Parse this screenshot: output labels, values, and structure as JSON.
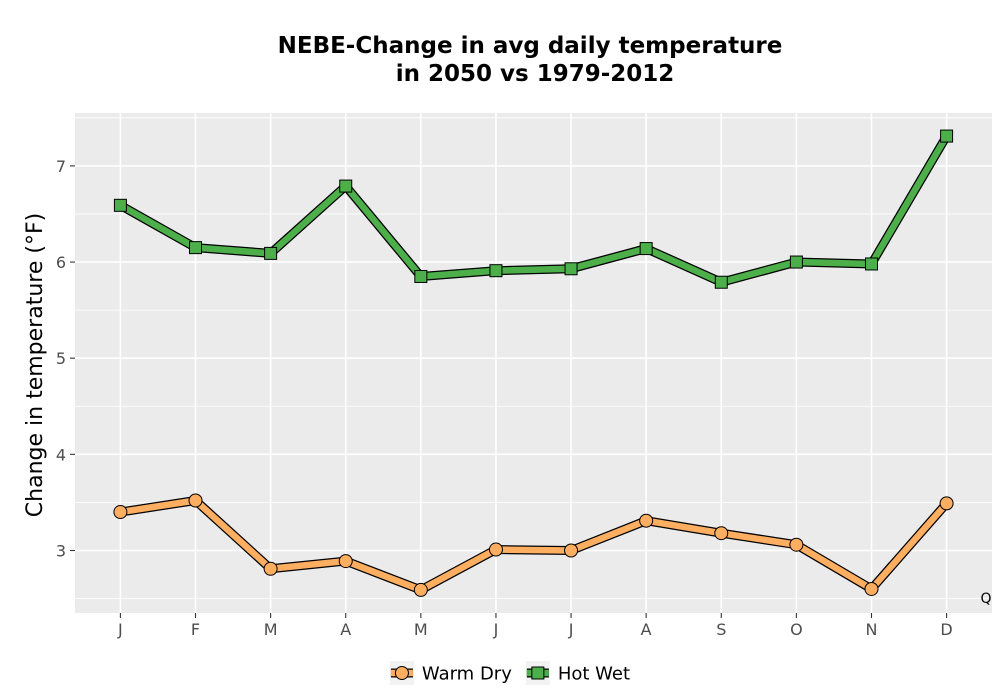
{
  "chart_data": {
    "type": "line",
    "title_line1": "NEBE-Change in avg daily temperature",
    "title_line2": "in 2050 vs 1979-2012",
    "xlabel": "",
    "ylabel": "Change in temperature (°F)",
    "categories": [
      "J",
      "F",
      "M",
      "A",
      "M",
      "J",
      "J",
      "A",
      "S",
      "O",
      "N",
      "D"
    ],
    "yticks": [
      3,
      4,
      5,
      6,
      7
    ],
    "ylim": [
      2.35,
      7.55
    ],
    "grid": true,
    "legend_position": "bottom",
    "annotation": "Q",
    "series": [
      {
        "name": "Warm Dry",
        "marker": "circle",
        "color": "#fdae61",
        "values": [
          3.4,
          3.52,
          2.81,
          2.89,
          2.59,
          3.01,
          3.0,
          3.31,
          3.18,
          3.06,
          2.6,
          3.49
        ]
      },
      {
        "name": "Hot Wet",
        "marker": "square",
        "color": "#4daf4a",
        "values": [
          6.59,
          6.15,
          6.09,
          6.79,
          5.85,
          5.91,
          5.93,
          6.14,
          5.79,
          6.0,
          5.98,
          7.31
        ]
      }
    ]
  }
}
